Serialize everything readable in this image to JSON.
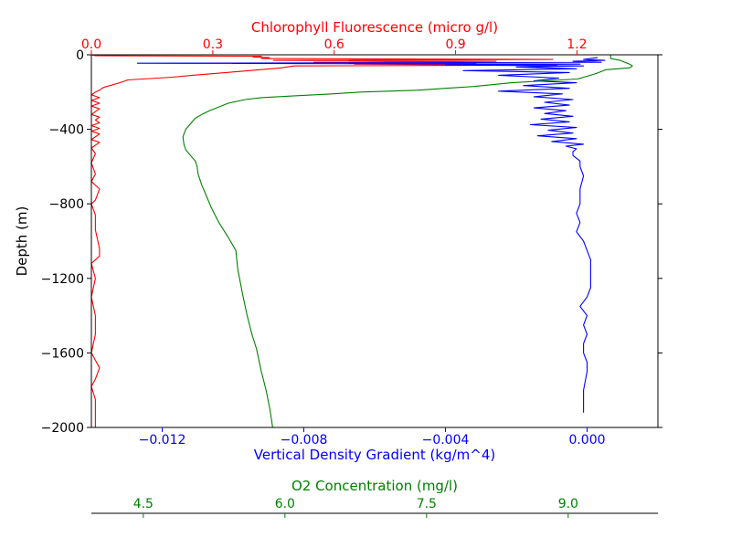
{
  "chart_data": {
    "type": "line",
    "xlabel_top": "Chlorophyll Fluorescence (micro g/l)",
    "xlabel_bottom": "Vertical Density Gradient (kg/m^4)",
    "xlabel_third": "O2 Concentration (mg/l)",
    "ylabel": "Depth (m)",
    "ylim": [
      -2000,
      0
    ],
    "y_ticks": [
      0,
      -400,
      -800,
      -1200,
      -1600,
      -2000
    ],
    "y_tick_labels": [
      "0",
      "−400",
      "−800",
      "−1200",
      "−1600",
      "−2000"
    ],
    "axes": {
      "chlorophyll": {
        "color": "#ff0000",
        "xlim": [
          0.0,
          1.4
        ],
        "ticks": [
          0.0,
          0.3,
          0.6,
          0.9,
          1.2
        ],
        "tick_labels": [
          "0.0",
          "0.3",
          "0.6",
          "0.9",
          "1.2"
        ]
      },
      "density": {
        "color": "#0000ff",
        "xlim": [
          -0.014,
          0.002
        ],
        "ticks": [
          -0.012,
          -0.008,
          -0.004,
          0.0
        ],
        "tick_labels": [
          "−0.012",
          "−0.008",
          "−0.004",
          "0.000"
        ]
      },
      "o2": {
        "color": "#008000",
        "xlim": [
          3.95,
          9.95
        ],
        "ticks": [
          4.5,
          6.0,
          7.5,
          9.0
        ],
        "tick_labels": [
          "4.5",
          "6.0",
          "7.5",
          "9.0"
        ]
      }
    },
    "series": [
      {
        "axis": "chlorophyll",
        "color": "#ff0000",
        "points": [
          [
            0.0,
            0
          ],
          [
            0.01,
            -5
          ],
          [
            0.42,
            -8
          ],
          [
            0.4,
            -12
          ],
          [
            0.44,
            -15
          ],
          [
            0.42,
            -20
          ],
          [
            1.14,
            -25
          ],
          [
            0.45,
            -30
          ],
          [
            1.0,
            -35
          ],
          [
            0.55,
            -40
          ],
          [
            0.95,
            -45
          ],
          [
            0.65,
            -50
          ],
          [
            1.15,
            -55
          ],
          [
            0.5,
            -60
          ],
          [
            0.47,
            -70
          ],
          [
            0.36,
            -90
          ],
          [
            0.25,
            -110
          ],
          [
            0.2,
            -120
          ],
          [
            0.09,
            -135
          ],
          [
            0.07,
            -150
          ],
          [
            0.03,
            -175
          ],
          [
            0.02,
            -190
          ],
          [
            0.01,
            -200
          ],
          [
            0.0,
            -215
          ],
          [
            0.02,
            -230
          ],
          [
            0.0,
            -245
          ],
          [
            0.02,
            -260
          ],
          [
            0.0,
            -275
          ],
          [
            0.02,
            -290
          ],
          [
            0.01,
            -305
          ],
          [
            0.0,
            -320
          ],
          [
            0.02,
            -335
          ],
          [
            0.01,
            -350
          ],
          [
            0.02,
            -365
          ],
          [
            0.0,
            -380
          ],
          [
            0.02,
            -395
          ],
          [
            0.0,
            -410
          ],
          [
            0.02,
            -425
          ],
          [
            0.01,
            -440
          ],
          [
            0.0,
            -455
          ],
          [
            0.02,
            -470
          ],
          [
            0.01,
            -485
          ],
          [
            0.0,
            -500
          ],
          [
            0.01,
            -530
          ],
          [
            0.0,
            -580
          ],
          [
            0.01,
            -640
          ],
          [
            0.0,
            -680
          ],
          [
            0.02,
            -720
          ],
          [
            0.01,
            -780
          ],
          [
            0.0,
            -800
          ],
          [
            0.01,
            -860
          ],
          [
            0.01,
            -940
          ],
          [
            0.02,
            -1040
          ],
          [
            0.02,
            -1080
          ],
          [
            0.0,
            -1120
          ],
          [
            0.01,
            -1200
          ],
          [
            0.0,
            -1300
          ],
          [
            0.01,
            -1400
          ],
          [
            0.01,
            -1500
          ],
          [
            0.0,
            -1600
          ],
          [
            0.02,
            -1680
          ],
          [
            0.01,
            -1740
          ],
          [
            0.0,
            -1780
          ],
          [
            0.01,
            -1850
          ],
          [
            0.01,
            -1900
          ],
          [
            0.01,
            -1950
          ],
          [
            0.01,
            -2000
          ]
        ]
      },
      {
        "axis": "density",
        "color": "#0000ff",
        "points": [
          [
            0.0003,
            -15
          ],
          [
            -0.0001,
            -25
          ],
          [
            0.0005,
            -30
          ],
          [
            -0.0004,
            -35
          ],
          [
            0.0004,
            -40
          ],
          [
            -0.0127,
            -45
          ],
          [
            -0.0002,
            -50
          ],
          [
            -0.004,
            -55
          ],
          [
            -0.0001,
            -60
          ],
          [
            -0.002,
            -65
          ],
          [
            -0.0003,
            -75
          ],
          [
            -0.0035,
            -85
          ],
          [
            -0.0005,
            -95
          ],
          [
            -0.0025,
            -110
          ],
          [
            -0.0008,
            -125
          ],
          [
            -0.0015,
            -140
          ],
          [
            -0.0003,
            -150
          ],
          [
            -0.0018,
            -165
          ],
          [
            -0.0005,
            -180
          ],
          [
            -0.0025,
            -195
          ],
          [
            -0.0007,
            -210
          ],
          [
            -0.0015,
            -225
          ],
          [
            -0.0004,
            -240
          ],
          [
            -0.0012,
            -255
          ],
          [
            -0.0005,
            -270
          ],
          [
            -0.0015,
            -285
          ],
          [
            -0.0006,
            -300
          ],
          [
            -0.0012,
            -315
          ],
          [
            -0.0004,
            -330
          ],
          [
            -0.0013,
            -345
          ],
          [
            -0.0005,
            -360
          ],
          [
            -0.0016,
            -375
          ],
          [
            -0.0003,
            -390
          ],
          [
            -0.0011,
            -405
          ],
          [
            -0.0004,
            -420
          ],
          [
            -0.0014,
            -435
          ],
          [
            -0.0003,
            -450
          ],
          [
            -0.001,
            -465
          ],
          [
            -0.0001,
            -480
          ],
          [
            -0.0006,
            -490
          ],
          [
            -0.0003,
            -505
          ],
          [
            -0.0004,
            -520
          ],
          [
            -0.0004,
            -540
          ],
          [
            -0.0002,
            -570
          ],
          [
            -0.0002,
            -600
          ],
          [
            -0.0001,
            -650
          ],
          [
            -0.0002,
            -720
          ],
          [
            -0.0002,
            -800
          ],
          [
            -0.0003,
            -850
          ],
          [
            -0.0002,
            -900
          ],
          [
            -0.0003,
            -950
          ],
          [
            -0.0001,
            -1000
          ],
          [
            0.0,
            -1050
          ],
          [
            0.0001,
            -1100
          ],
          [
            0.0001,
            -1200
          ],
          [
            0.0001,
            -1250
          ],
          [
            0.0,
            -1300
          ],
          [
            -0.0002,
            -1350
          ],
          [
            0.0,
            -1400
          ],
          [
            -0.0001,
            -1450
          ],
          [
            0.0,
            -1500
          ],
          [
            -0.0001,
            -1550
          ],
          [
            -0.0001,
            -1600
          ],
          [
            0.0,
            -1650
          ],
          [
            0.0,
            -1700
          ],
          [
            -0.0001,
            -1800
          ],
          [
            -0.0001,
            -1850
          ],
          [
            -0.0001,
            -1920
          ]
        ]
      },
      {
        "axis": "o2",
        "color": "#008000",
        "points": [
          [
            9.45,
            0
          ],
          [
            9.45,
            -20
          ],
          [
            9.55,
            -30
          ],
          [
            9.65,
            -50
          ],
          [
            9.68,
            -60
          ],
          [
            9.65,
            -70
          ],
          [
            9.4,
            -80
          ],
          [
            9.3,
            -100
          ],
          [
            9.1,
            -130
          ],
          [
            8.4,
            -150
          ],
          [
            8.0,
            -170
          ],
          [
            7.7,
            -180
          ],
          [
            7.4,
            -190
          ],
          [
            6.8,
            -200
          ],
          [
            6.5,
            -210
          ],
          [
            6.1,
            -220
          ],
          [
            5.75,
            -230
          ],
          [
            5.58,
            -240
          ],
          [
            5.4,
            -260
          ],
          [
            5.3,
            -280
          ],
          [
            5.2,
            -300
          ],
          [
            5.12,
            -320
          ],
          [
            5.05,
            -340
          ],
          [
            5.0,
            -370
          ],
          [
            4.95,
            -400
          ],
          [
            4.92,
            -440
          ],
          [
            4.93,
            -480
          ],
          [
            4.95,
            -510
          ],
          [
            5.0,
            -540
          ],
          [
            5.05,
            -570
          ],
          [
            5.07,
            -600
          ],
          [
            5.08,
            -640
          ],
          [
            5.12,
            -700
          ],
          [
            5.17,
            -760
          ],
          [
            5.22,
            -820
          ],
          [
            5.3,
            -900
          ],
          [
            5.4,
            -980
          ],
          [
            5.48,
            -1050
          ],
          [
            5.5,
            -1150
          ],
          [
            5.55,
            -1280
          ],
          [
            5.6,
            -1400
          ],
          [
            5.65,
            -1500
          ],
          [
            5.7,
            -1580
          ],
          [
            5.75,
            -1700
          ],
          [
            5.8,
            -1800
          ],
          [
            5.84,
            -1900
          ],
          [
            5.87,
            -2000
          ]
        ]
      }
    ]
  }
}
